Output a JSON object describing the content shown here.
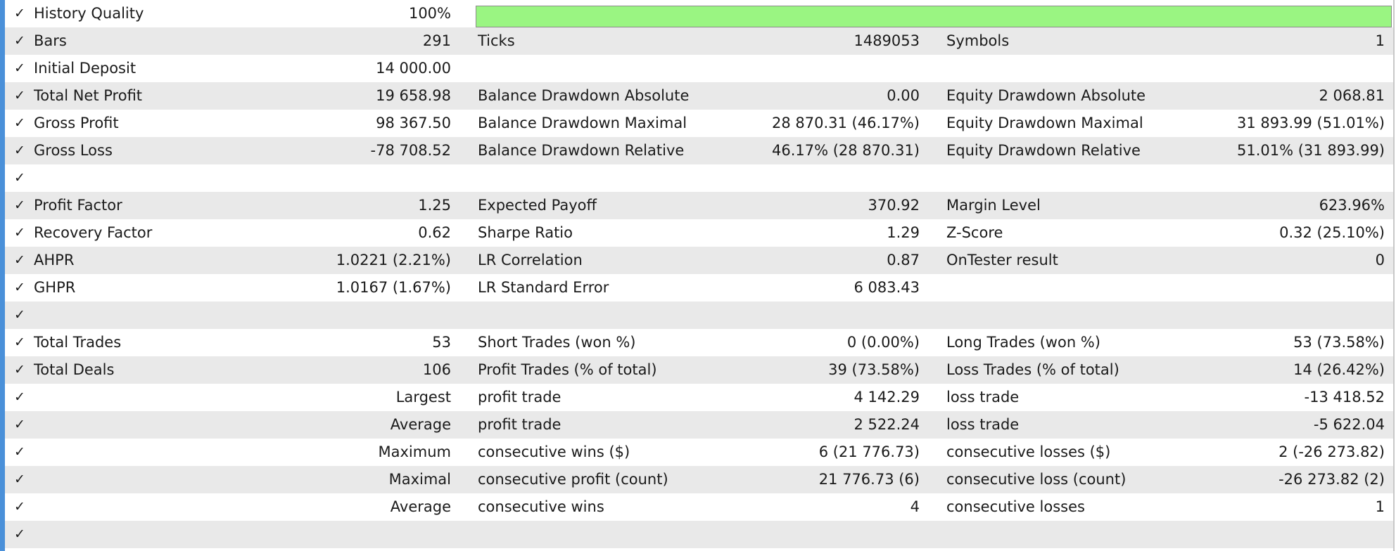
{
  "colors": {
    "quality_fill": "#9af582",
    "row_alt": "#e9e9e9",
    "left_edge": "#4a90d9"
  },
  "check_icon": "✓",
  "history_quality": {
    "label": "History Quality",
    "value": "100%",
    "fraction": 1.0
  },
  "rows": {
    "bars": {
      "c1": {
        "label": "Bars",
        "value": "291"
      },
      "c2": {
        "label": "Ticks",
        "value": "1489053"
      },
      "c3": {
        "label": "Symbols",
        "value": "1"
      }
    },
    "deposit": {
      "c1": {
        "label": "Initial Deposit",
        "value": "14 000.00"
      }
    },
    "net_profit": {
      "c1": {
        "label": "Total Net Profit",
        "value": "19 658.98"
      },
      "c2": {
        "label": "Balance Drawdown Absolute",
        "value": "0.00"
      },
      "c3": {
        "label": "Equity Drawdown Absolute",
        "value": "2 068.81"
      }
    },
    "gross_profit": {
      "c1": {
        "label": "Gross Profit",
        "value": "98 367.50"
      },
      "c2": {
        "label": "Balance Drawdown Maximal",
        "value": "28 870.31 (46.17%)"
      },
      "c3": {
        "label": "Equity Drawdown Maximal",
        "value": "31 893.99 (51.01%)"
      }
    },
    "gross_loss": {
      "c1": {
        "label": "Gross Loss",
        "value": "-78 708.52"
      },
      "c2": {
        "label": "Balance Drawdown Relative",
        "value": "46.17% (28 870.31)"
      },
      "c3": {
        "label": "Equity Drawdown Relative",
        "value": "51.01% (31 893.99)"
      }
    },
    "profit_factor": {
      "c1": {
        "label": "Profit Factor",
        "value": "1.25"
      },
      "c2": {
        "label": "Expected Payoff",
        "value": "370.92"
      },
      "c3": {
        "label": "Margin Level",
        "value": "623.96%"
      }
    },
    "recovery": {
      "c1": {
        "label": "Recovery Factor",
        "value": "0.62"
      },
      "c2": {
        "label": "Sharpe Ratio",
        "value": "1.29"
      },
      "c3": {
        "label": "Z-Score",
        "value": "0.32 (25.10%)"
      }
    },
    "ahpr": {
      "c1": {
        "label": "AHPR",
        "value": "1.0221 (2.21%)"
      },
      "c2": {
        "label": "LR Correlation",
        "value": "0.87"
      },
      "c3": {
        "label": "OnTester result",
        "value": "0"
      }
    },
    "ghpr": {
      "c1": {
        "label": "GHPR",
        "value": "1.0167 (1.67%)"
      },
      "c2": {
        "label": "LR Standard Error",
        "value": "6 083.43"
      }
    },
    "total_trades": {
      "c1": {
        "label": "Total Trades",
        "value": "53"
      },
      "c2": {
        "label": "Short Trades (won %)",
        "value": "0 (0.00%)"
      },
      "c3": {
        "label": "Long Trades (won %)",
        "value": "53 (73.58%)"
      }
    },
    "total_deals": {
      "c1": {
        "label": "Total Deals",
        "value": "106"
      },
      "c2": {
        "label": "Profit Trades (% of total)",
        "value": "39 (73.58%)"
      },
      "c3": {
        "label": "Loss Trades (% of total)",
        "value": "14 (26.42%)"
      }
    },
    "largest": {
      "c1": {
        "label": "Largest"
      },
      "c2": {
        "label": "profit trade",
        "value": "4 142.29"
      },
      "c3": {
        "label": "loss trade",
        "value": "-13 418.52"
      }
    },
    "average": {
      "c1": {
        "label": "Average"
      },
      "c2": {
        "label": "profit trade",
        "value": "2 522.24"
      },
      "c3": {
        "label": "loss trade",
        "value": "-5 622.04"
      }
    },
    "maximum": {
      "c1": {
        "label": "Maximum"
      },
      "c2": {
        "label": "consecutive wins ($)",
        "value": "6 (21 776.73)"
      },
      "c3": {
        "label": "consecutive losses ($)",
        "value": "2 (-26 273.82)"
      }
    },
    "maximal": {
      "c1": {
        "label": "Maximal"
      },
      "c2": {
        "label": "consecutive profit (count)",
        "value": "21 776.73 (6)"
      },
      "c3": {
        "label": "consecutive loss (count)",
        "value": "-26 273.82 (2)"
      }
    },
    "average_consec": {
      "c1": {
        "label": "Average"
      },
      "c2": {
        "label": "consecutive wins",
        "value": "4"
      },
      "c3": {
        "label": "consecutive losses",
        "value": "1"
      }
    }
  }
}
